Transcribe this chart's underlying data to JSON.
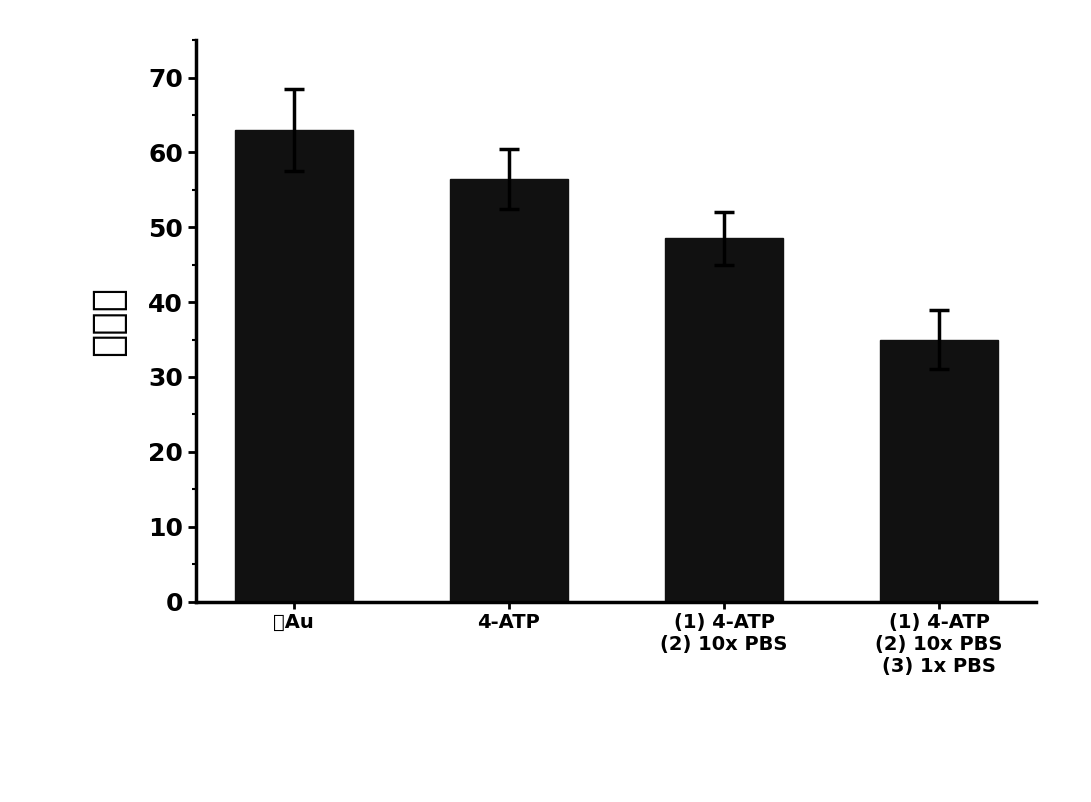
{
  "categories": [
    "裸Au",
    "4-ATP",
    "(1) 4-ATP\n(2) 10x PBS",
    "(1) 4-ATP\n(2) 10x PBS\n(3) 1x PBS"
  ],
  "values": [
    63.0,
    56.5,
    48.5,
    35.0
  ],
  "errors": [
    5.5,
    4.0,
    3.5,
    4.0
  ],
  "bar_color": "#111111",
  "ylabel": "接触角",
  "ylim": [
    0,
    75
  ],
  "yticks": [
    0,
    10,
    20,
    30,
    40,
    50,
    60,
    70
  ],
  "background_color": "#ffffff",
  "bar_width": 0.55,
  "ylabel_fontsize": 28,
  "ytick_fontsize": 18,
  "xtick_fontsize": 14
}
